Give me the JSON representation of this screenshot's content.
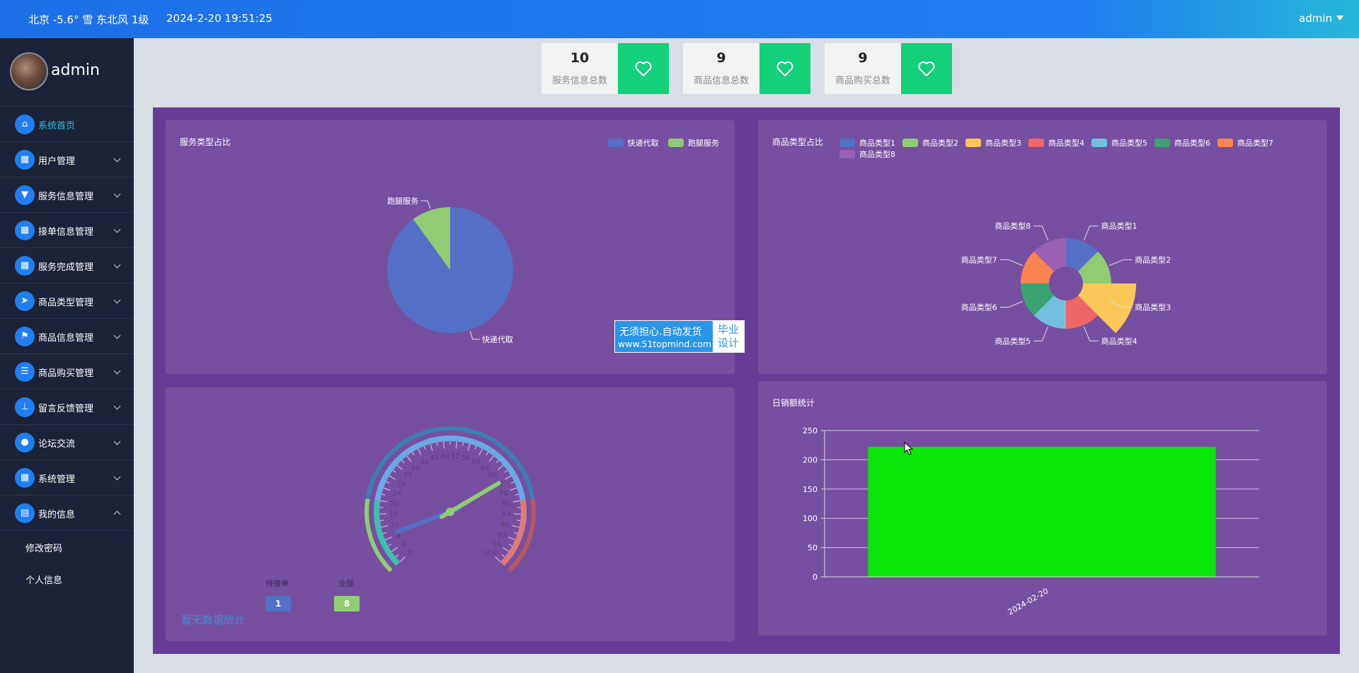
{
  "header": {
    "weather": "北京  -5.6°  雪  东北风  1级",
    "datetime": "2024-2-20 19:51:25",
    "user": "admin"
  },
  "sidebar": {
    "username": "admin",
    "items": [
      {
        "label": "系统首页",
        "icon": "home-icon",
        "glyph": "⌂",
        "active": true
      },
      {
        "label": "用户管理",
        "icon": "grid-icon",
        "glyph": "▦"
      },
      {
        "label": "服务信息管理",
        "icon": "pin-icon",
        "glyph": "▼"
      },
      {
        "label": "接单信息管理",
        "icon": "grid-icon",
        "glyph": "▦"
      },
      {
        "label": "服务完成管理",
        "icon": "grid-icon",
        "glyph": "▦"
      },
      {
        "label": "商品类型管理",
        "icon": "send-icon",
        "glyph": "➤"
      },
      {
        "label": "商品信息管理",
        "icon": "flag-icon",
        "glyph": "⚑"
      },
      {
        "label": "商品购买管理",
        "icon": "list-icon",
        "glyph": "☰"
      },
      {
        "label": "留言反馈管理",
        "icon": "stamp-icon",
        "glyph": "⊥"
      },
      {
        "label": "论坛交流",
        "icon": "location-icon",
        "glyph": "●"
      },
      {
        "label": "系统管理",
        "icon": "grid-icon",
        "glyph": "▦"
      },
      {
        "label": "我的信息",
        "icon": "card-icon",
        "glyph": "▤",
        "expanded": true
      }
    ],
    "subitems": [
      "修改密码",
      "个人信息"
    ]
  },
  "stats": [
    {
      "value": "10",
      "label": "服务信息总数"
    },
    {
      "value": "9",
      "label": "商品信息总数"
    },
    {
      "value": "9",
      "label": "商品购买总数"
    }
  ],
  "watermark": {
    "line1": "无须担心.自动发货",
    "line2": "www.51topmind.com",
    "badge1": "毕业",
    "badge2": "设计"
  },
  "colors": {
    "accent": "#1f7ff0",
    "heart": "#13d17a",
    "panel": "#774fa0",
    "bar": "#0be60b"
  },
  "chart_data": [
    {
      "type": "pie",
      "title": "服务类型占比",
      "legend": [
        "快递代取",
        "跑腿服务"
      ],
      "slices": [
        {
          "name": "快递代取",
          "value": 9,
          "color": "#5470c6"
        },
        {
          "name": "跑腿服务",
          "value": 1,
          "color": "#91cc75"
        }
      ]
    },
    {
      "type": "pie",
      "title": "商品类型占比",
      "variant": "rose-donut",
      "legend": [
        "商品类型1",
        "商品类型2",
        "商品类型3",
        "商品类型4",
        "商品类型5",
        "商品类型6",
        "商品类型7",
        "商品类型8"
      ],
      "slices": [
        {
          "name": "商品类型1",
          "value": 1,
          "color": "#5470c6"
        },
        {
          "name": "商品类型2",
          "value": 1,
          "color": "#91cc75"
        },
        {
          "name": "商品类型3",
          "value": 2,
          "color": "#fac858"
        },
        {
          "name": "商品类型4",
          "value": 1,
          "color": "#ee6666"
        },
        {
          "name": "商品类型5",
          "value": 1,
          "color": "#73c0de"
        },
        {
          "name": "商品类型6",
          "value": 1,
          "color": "#3ba272"
        },
        {
          "name": "商品类型7",
          "value": 1,
          "color": "#fc8452"
        },
        {
          "name": "商品类型8",
          "value": 1,
          "color": "#9a60b4"
        }
      ]
    },
    {
      "type": "gauge",
      "title": "",
      "ticks": [
        "0",
        "4",
        "8",
        "12",
        "16",
        "20",
        "24",
        "28",
        "32",
        "36",
        "40",
        "44",
        "48",
        "52",
        "56",
        "60",
        "64",
        "68",
        "72",
        "76",
        "80",
        "84",
        "88",
        "92",
        "96",
        "100"
      ],
      "min": 0,
      "max": 100,
      "series": [
        {
          "name": "待接单",
          "value": 1,
          "color": "#5470c6"
        },
        {
          "name": "全部",
          "value": 8,
          "color": "#91cc75"
        }
      ],
      "link": "暂无数据统计"
    },
    {
      "type": "bar",
      "title": "日销额统计",
      "categories": [
        "2024-02-20"
      ],
      "values": [
        222
      ],
      "ylim": [
        0,
        250
      ],
      "yticks": [
        "0",
        "50",
        "100",
        "150",
        "200",
        "250"
      ],
      "color": "#0be60b"
    }
  ]
}
